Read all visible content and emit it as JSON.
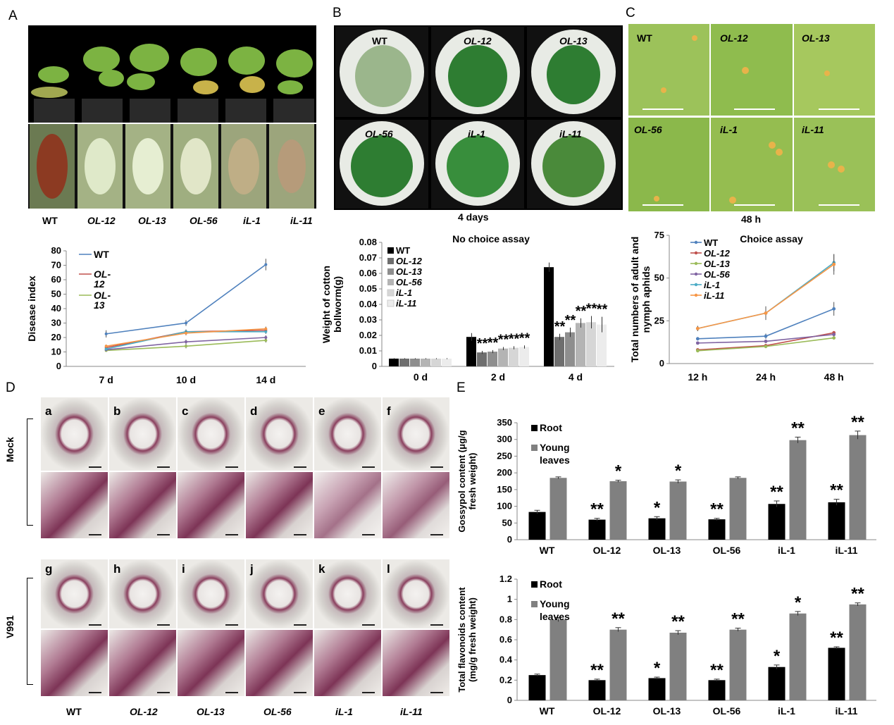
{
  "panels": {
    "A": "A",
    "B": "B",
    "C": "C",
    "D": "D",
    "E": "E"
  },
  "colors": {
    "wt": "#4f81bd",
    "ol12": "#c0504d",
    "ol13": "#9bbb59",
    "ol56": "#8064a2",
    "il1": "#4bacc6",
    "il11": "#f79646"
  },
  "panel_a": {
    "line_labels": [
      "WT",
      "OL-12",
      "OL-13",
      "OL-56",
      "iL-1",
      "iL-11"
    ]
  },
  "panel_b": {
    "dish_labels": [
      "WT",
      "OL-12",
      "OL-13",
      "OL-56",
      "iL-1",
      "iL-11"
    ],
    "caption": "4 days"
  },
  "panel_c": {
    "photo_labels": [
      "WT",
      "OL-12",
      "OL-13",
      "OL-56",
      "iL-1",
      "iL-11"
    ],
    "caption": "48 h"
  },
  "panel_d": {
    "row_labels": [
      "Mock",
      "V991"
    ],
    "letters_top": [
      "a",
      "b",
      "c",
      "d",
      "e",
      "f"
    ],
    "letters_bottom": [
      "g",
      "h",
      "i",
      "j",
      "k",
      "l"
    ],
    "col_labels": [
      "WT",
      "OL-12",
      "OL-13",
      "OL-56",
      "iL-1",
      "iL-11"
    ]
  },
  "chart_data": [
    {
      "id": "disease-index",
      "type": "line",
      "title": "",
      "ylabel": "Disease index",
      "xlabel": "",
      "categories": [
        "7 d",
        "10 d",
        "14 d"
      ],
      "ylim": [
        0,
        80
      ],
      "yticks": [
        0,
        10,
        20,
        30,
        40,
        50,
        60,
        70,
        80
      ],
      "legend": [
        "WT",
        "OL-12",
        "OL-13"
      ],
      "legend_display": [
        [
          "WT"
        ],
        [
          "OL-",
          "12"
        ],
        [
          "OL-",
          "13"
        ]
      ],
      "series": [
        {
          "name": "WT",
          "values": [
            22.5,
            30,
            70.5
          ],
          "err": [
            2.5,
            2,
            4
          ]
        },
        {
          "name": "OL-12",
          "values": [
            13,
            24,
            25
          ],
          "err": [
            2,
            1.5,
            2
          ]
        },
        {
          "name": "OL-13",
          "values": [
            11,
            14,
            18
          ],
          "err": [
            1,
            1.5,
            1.5
          ]
        },
        {
          "name": "OL-56",
          "values": [
            11.5,
            17,
            20
          ],
          "err": [
            1,
            1.5,
            1.5
          ]
        },
        {
          "name": "iL-1",
          "values": [
            12,
            24,
            24
          ],
          "err": [
            1,
            1.5,
            1.5
          ]
        },
        {
          "name": "iL-11",
          "values": [
            14,
            23,
            26
          ],
          "err": [
            1,
            1.5,
            1.5
          ]
        }
      ]
    },
    {
      "id": "no-choice",
      "type": "bar",
      "title": "No choice assay",
      "ylabel": "Weight of cotton bollworm(g)",
      "ylabel_lines": [
        "Weight of cotton",
        "bollworm(g)"
      ],
      "categories": [
        "0 d",
        "2 d",
        "4 d"
      ],
      "ylim": [
        0,
        0.08
      ],
      "yticks": [
        0,
        0.01,
        0.02,
        0.03,
        0.04,
        0.05,
        0.06,
        0.07,
        0.08
      ],
      "ytick_labels": [
        "0",
        "0.01",
        "0.02",
        "0.03",
        "0.04",
        "0.05",
        "0.06",
        "0.07",
        "0.08"
      ],
      "series": [
        {
          "name": "WT",
          "values": [
            0.005,
            0.019,
            0.064
          ],
          "err": [
            0.0003,
            0.0025,
            0.003
          ]
        },
        {
          "name": "OL-12",
          "values": [
            0.005,
            0.009,
            0.019
          ],
          "err": [
            0.0003,
            0.001,
            0.002
          ]
        },
        {
          "name": "OL-13",
          "values": [
            0.005,
            0.0095,
            0.022
          ],
          "err": [
            0.0003,
            0.001,
            0.003
          ]
        },
        {
          "name": "OL-56",
          "values": [
            0.005,
            0.0115,
            0.028
          ],
          "err": [
            0.0003,
            0.001,
            0.003
          ]
        },
        {
          "name": "iL-1",
          "values": [
            0.005,
            0.012,
            0.0285
          ],
          "err": [
            0.0003,
            0.001,
            0.004
          ]
        },
        {
          "name": "iL-11",
          "values": [
            0.005,
            0.0125,
            0.027
          ],
          "err": [
            0.0003,
            0.001,
            0.005
          ]
        }
      ],
      "annotations": [
        "",
        "**",
        "**",
        "**",
        "**",
        "**",
        "",
        "**",
        "**",
        "**",
        "**",
        "**"
      ]
    },
    {
      "id": "choice",
      "type": "line",
      "title": "Choice assay",
      "ylabel": "Total numbers of adult and nymph aphids",
      "ylabel_lines": [
        "Total numbers of adult and",
        "nymph aphids"
      ],
      "categories": [
        "12 h",
        "24 h",
        "48 h"
      ],
      "ylim": [
        0,
        75
      ],
      "yticks": [
        0,
        25,
        50,
        75
      ],
      "legend": [
        "WT",
        "OL-12",
        "OL-13",
        "OL-56",
        "iL-1",
        "iL-11"
      ],
      "series": [
        {
          "name": "WT",
          "values": [
            14.5,
            16,
            32
          ],
          "err": [
            1,
            1.5,
            4
          ]
        },
        {
          "name": "OL-12",
          "values": [
            8,
            10.5,
            18
          ],
          "err": [
            0.5,
            1,
            1
          ]
        },
        {
          "name": "OL-13",
          "values": [
            7.5,
            10,
            15
          ],
          "err": [
            0.5,
            1,
            1
          ]
        },
        {
          "name": "OL-56",
          "values": [
            12,
            13,
            17
          ],
          "err": [
            0.5,
            1,
            1
          ]
        },
        {
          "name": "iL-1",
          "values": [
            20.5,
            29.5,
            59
          ],
          "err": [
            1.5,
            3,
            5
          ]
        },
        {
          "name": "iL-11",
          "values": [
            20.5,
            29.5,
            58
          ],
          "err": [
            1.5,
            4,
            6
          ]
        }
      ]
    },
    {
      "id": "gossypol",
      "type": "bar",
      "title": "",
      "ylabel": "Gossypol content (μg/g fresh weight)",
      "ylabel_lines": [
        "Gossypol  content (μg/g",
        "fresh weight)"
      ],
      "categories": [
        "WT",
        "OL-12",
        "OL-13",
        "OL-56",
        "iL-1",
        "iL-11"
      ],
      "ylim": [
        0,
        350
      ],
      "yticks": [
        0,
        50,
        100,
        150,
        200,
        250,
        300,
        350
      ],
      "legend": [
        "Root",
        "Young leaves"
      ],
      "legend_display": [
        [
          "Root"
        ],
        [
          "Young",
          "leaves"
        ]
      ],
      "series": [
        {
          "name": "Root",
          "values": [
            83,
            60,
            64,
            61,
            107,
            112
          ],
          "err": [
            5,
            4,
            5,
            3,
            9,
            9
          ],
          "annotations": [
            "",
            "**",
            "*",
            "**",
            "**",
            "**"
          ]
        },
        {
          "name": "Young leaves",
          "values": [
            185,
            175,
            174,
            185,
            298,
            313
          ],
          "err": [
            3,
            3,
            5,
            3,
            9,
            12
          ],
          "annotations": [
            "",
            "*",
            "*",
            "",
            "**",
            "**"
          ]
        }
      ]
    },
    {
      "id": "flavonoids",
      "type": "bar",
      "title": "",
      "ylabel": "Total flavonoids content (mg/g fresh weight)",
      "ylabel_lines": [
        "Total flavonoids content",
        "(mg/g fresh weight)"
      ],
      "categories": [
        "WT",
        "OL-12",
        "OL-13",
        "OL-56",
        "iL-1",
        "iL-11"
      ],
      "ylim": [
        0,
        1.2
      ],
      "yticks": [
        0,
        0.2,
        0.4,
        0.6,
        0.8,
        1,
        1.2
      ],
      "ytick_labels": [
        "0",
        "0.2",
        "0.4",
        "0.6",
        "0.8",
        "1",
        "1.2"
      ],
      "legend": [
        "Root",
        "Young leaves"
      ],
      "legend_display": [
        [
          "Root"
        ],
        [
          "Young",
          "leaves"
        ]
      ],
      "series": [
        {
          "name": "Root",
          "values": [
            0.25,
            0.2,
            0.22,
            0.2,
            0.33,
            0.52
          ],
          "err": [
            0.01,
            0.01,
            0.01,
            0.01,
            0.02,
            0.01
          ],
          "annotations": [
            "",
            "**",
            "*",
            "**",
            "*",
            "**"
          ]
        },
        {
          "name": "Young leaves",
          "values": [
            0.8,
            0.7,
            0.67,
            0.7,
            0.86,
            0.95
          ],
          "err": [
            0.02,
            0.02,
            0.02,
            0.015,
            0.02,
            0.015
          ],
          "annotations": [
            "",
            "**",
            "**",
            "**",
            "*",
            "**"
          ]
        }
      ]
    }
  ]
}
